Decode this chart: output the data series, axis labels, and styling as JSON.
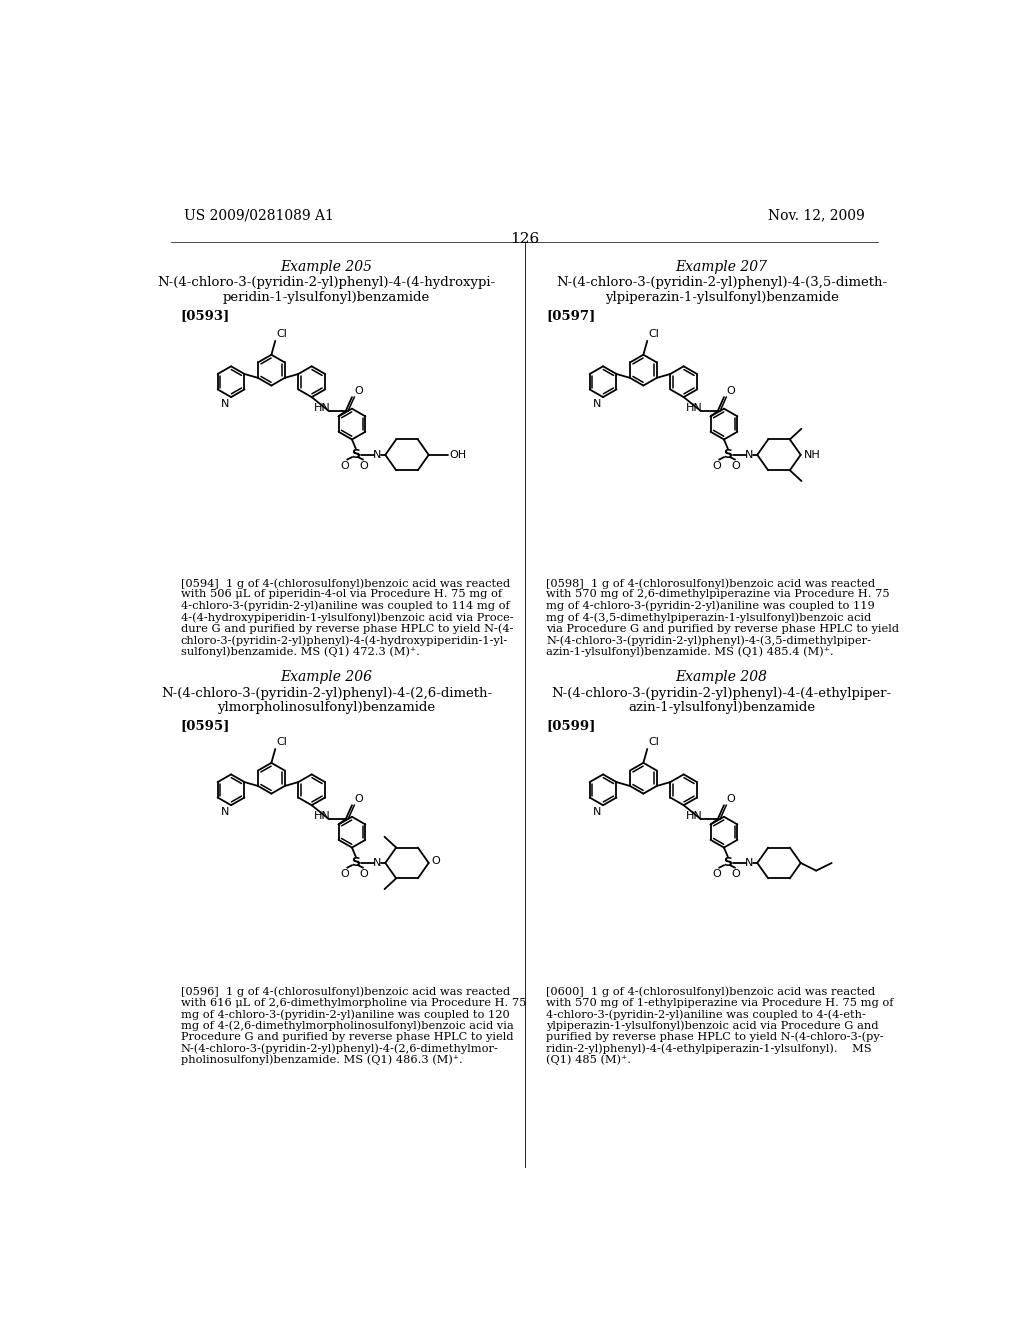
{
  "bg_color": "#ffffff",
  "page_header_left": "US 2009/0281089 A1",
  "page_header_right": "Nov. 12, 2009",
  "page_number": "126",
  "ex205_title1": "Example 205",
  "ex205_name1": "N-(4-chloro-3-(pyridin-2-yl)phenyl)-4-(4-hydroxypi-",
  "ex205_name2": "peridin-1-ylsulfonyl)benzamide",
  "ex205_ref": "[0593]",
  "ex205_body": [
    "[0594]  1 g of 4-(chlorosulfonyl)benzoic acid was reacted",
    "with 506 μL of piperidin-4-ol via Procedure H. 75 mg of",
    "4-chloro-3-(pyridin-2-yl)aniline was coupled to 114 mg of",
    "4-(4-hydroxypiperidin-1-ylsulfonyl)benzoic acid via Proce-",
    "dure G and purified by reverse phase HPLC to yield N-(4-",
    "chloro-3-(pyridin-2-yl)phenyl)-4-(4-hydroxypiperidin-1-yl-",
    "sulfonyl)benzamide. MS (Q1) 472.3 (M)⁺."
  ],
  "ex206_title1": "Example 206",
  "ex206_name1": "N-(4-chloro-3-(pyridin-2-yl)phenyl)-4-(2,6-dimeth-",
  "ex206_name2": "ylmorpholinosulfonyl)benzamide",
  "ex206_ref": "[0595]",
  "ex206_body": [
    "[0596]  1 g of 4-(chlorosulfonyl)benzoic acid was reacted",
    "with 616 μL of 2,6-dimethylmorpholine via Procedure H. 75",
    "mg of 4-chloro-3-(pyridin-2-yl)aniline was coupled to 120",
    "mg of 4-(2,6-dimethylmorpholinosulfonyl)benzoic acid via",
    "Procedure G and purified by reverse phase HPLC to yield",
    "N-(4-chloro-3-(pyridin-2-yl)phenyl)-4-(2,6-dimethylmor-",
    "pholinosulfonyl)benzamide. MS (Q1) 486.3 (M)⁺."
  ],
  "ex207_title1": "Example 207",
  "ex207_name1": "N-(4-chloro-3-(pyridin-2-yl)phenyl)-4-(3,5-dimeth-",
  "ex207_name2": "ylpiperazin-1-ylsulfonyl)benzamide",
  "ex207_ref": "[0597]",
  "ex207_body": [
    "[0598]  1 g of 4-(chlorosulfonyl)benzoic acid was reacted",
    "with 570 mg of 2,6-dimethylpiperazine via Procedure H. 75",
    "mg of 4-chloro-3-(pyridin-2-yl)aniline was coupled to 119",
    "mg of 4-(3,5-dimethylpiperazin-1-ylsulfonyl)benzoic acid",
    "via Procedure G and purified by reverse phase HPLC to yield",
    "N-(4-chloro-3-(pyridin-2-yl)phenyl)-4-(3,5-dimethylpiper-",
    "azin-1-ylsulfonyl)benzamide. MS (Q1) 485.4 (M)⁺."
  ],
  "ex208_title1": "Example 208",
  "ex208_name1": "N-(4-chloro-3-(pyridin-2-yl)phenyl)-4-(4-ethylpiper-",
  "ex208_name2": "azin-1-ylsulfonyl)benzamide",
  "ex208_ref": "[0599]",
  "ex208_body": [
    "[0600]  1 g of 4-(chlorosulfonyl)benzoic acid was reacted",
    "with 570 mg of 1-ethylpiperazine via Procedure H. 75 mg of",
    "4-chloro-3-(pyridin-2-yl)aniline was coupled to 4-(4-eth-",
    "ylpiperazin-1-ylsulfonyl)benzoic acid via Procedure G and",
    "purified by reverse phase HPLC to yield N-(4-chloro-3-(py-",
    "ridin-2-yl)phenyl)-4-(4-ethylpiperazin-1-ylsulfonyl).    MS",
    "(Q1) 485 (M)⁺."
  ]
}
